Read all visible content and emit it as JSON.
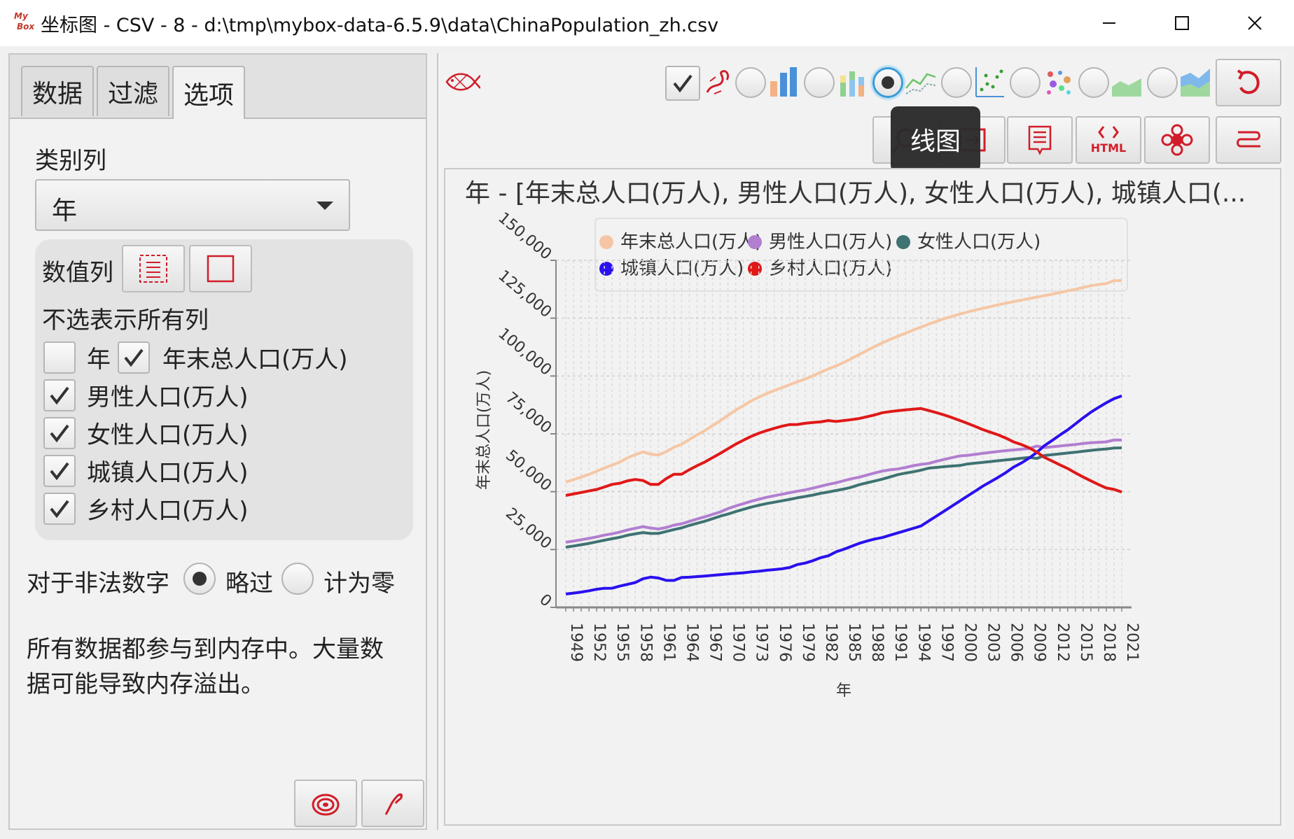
{
  "window": {
    "title": "坐标图 - CSV - 8 - d:\\tmp\\mybox-data-6.5.9\\data\\ChinaPopulation_zh.csv",
    "logo_text_top": "My",
    "logo_text_bottom": "Box"
  },
  "tabs": [
    {
      "label": "数据",
      "active": false
    },
    {
      "label": "过滤",
      "active": false
    },
    {
      "label": "选项",
      "active": true
    }
  ],
  "options": {
    "category_label": "类别列",
    "category_value": "年",
    "value_columns_label": "数值列",
    "none_selected_hint": "不选表示所有列",
    "columns": [
      {
        "label": "年",
        "checked": false
      },
      {
        "label": "年末总人口(万人)",
        "checked": true
      },
      {
        "label": "男性人口(万人)",
        "checked": true
      },
      {
        "label": "女性人口(万人)",
        "checked": true
      },
      {
        "label": "城镇人口(万人)",
        "checked": true
      },
      {
        "label": "乡村人口(万人)",
        "checked": true
      }
    ],
    "invalid_label": "对于非法数字",
    "skip_label": "略过",
    "zero_label": "计为零",
    "invalid_choice": "略过",
    "memory_note_line1": "所有数据都参与到内存中。大量数",
    "memory_note_line2": "据可能导致内存溢出。"
  },
  "toolbar": {
    "selected_chart_type": "line",
    "tooltip": "线图",
    "display_checked": true
  },
  "icons": {
    "logo": "mybox-logo",
    "fish": "fish-icon",
    "dragon": "dragon-icon",
    "bar": "bar-chart-icon",
    "stacked_bar": "stacked-bar-icon",
    "line": "line-chart-icon",
    "scatter": "scatter-icon",
    "bubble": "bubble-icon",
    "area": "area-chart-icon",
    "stacked_area": "stacked-area-icon",
    "refresh": "refresh-icon",
    "html": "HTML"
  },
  "colors": {
    "total": "#f6c6a4",
    "male": "#b17ed0",
    "female": "#3e7372",
    "urban": "#2a10ee",
    "rural": "#e01818",
    "accent": "#d11d2a"
  },
  "chart_data": {
    "type": "line",
    "title": "年 - [年末总人口(万人), 男性人口(万人), 女性人口(万人), 城镇人口(...",
    "xlabel": "年",
    "ylabel": "年末总人口(万人)",
    "ylim": [
      0,
      150000
    ],
    "yticks": [
      "0",
      "25,000",
      "50,000",
      "75,000",
      "100,000",
      "125,000",
      "150,000"
    ],
    "x_tick_labels": [
      "1949",
      "1952",
      "1955",
      "1958",
      "1961",
      "1964",
      "1967",
      "1970",
      "1973",
      "1976",
      "1979",
      "1982",
      "1985",
      "1988",
      "1991",
      "1994",
      "1997",
      "2000",
      "2003",
      "2006",
      "2009",
      "2012",
      "2015",
      "2018",
      "2021"
    ],
    "legend": "top",
    "grid": true,
    "x": [
      1949,
      1950,
      1951,
      1952,
      1953,
      1954,
      1955,
      1956,
      1957,
      1958,
      1959,
      1960,
      1961,
      1962,
      1963,
      1964,
      1965,
      1966,
      1967,
      1968,
      1969,
      1970,
      1971,
      1972,
      1973,
      1974,
      1975,
      1976,
      1977,
      1978,
      1979,
      1980,
      1981,
      1982,
      1983,
      1984,
      1985,
      1986,
      1987,
      1988,
      1989,
      1990,
      1991,
      1992,
      1993,
      1994,
      1995,
      1996,
      1997,
      1998,
      1999,
      2000,
      2001,
      2002,
      2003,
      2004,
      2005,
      2006,
      2007,
      2008,
      2009,
      2010,
      2011,
      2012,
      2013,
      2014,
      2015,
      2016,
      2017,
      2018,
      2019,
      2020,
      2021
    ],
    "series": [
      {
        "name": "年末总人口(万人)",
        "color": "#f6c6a4",
        "values": [
          54167,
          55196,
          56300,
          57482,
          58796,
          60266,
          61465,
          62828,
          64653,
          65994,
          67207,
          66207,
          65859,
          67295,
          69172,
          70499,
          72538,
          74542,
          76368,
          78534,
          80671,
          82992,
          85229,
          87177,
          89211,
          90859,
          92420,
          93717,
          94974,
          96259,
          97542,
          98705,
          100072,
          101654,
          103008,
          104357,
          105851,
          107507,
          109300,
          111026,
          112704,
          114333,
          115823,
          117171,
          118517,
          119850,
          121121,
          122389,
          123626,
          124761,
          125786,
          126743,
          127627,
          128453,
          129227,
          129988,
          130756,
          131448,
          132129,
          132802,
          133450,
          134091,
          134735,
          135404,
          136072,
          136782,
          137462,
          138271,
          139008,
          139538,
          140005,
          141212,
          141260
        ]
      },
      {
        "name": "男性人口(万人)",
        "color": "#b17ed0",
        "values": [
          28145,
          28669,
          29231,
          29833,
          30468,
          31242,
          31809,
          32536,
          33469,
          34201,
          34890,
          34283,
          33880,
          34517,
          35533,
          36142,
          37128,
          38189,
          39136,
          40206,
          41238,
          42686,
          43819,
          44813,
          45876,
          46727,
          47564,
          48257,
          48908,
          49567,
          50192,
          50785,
          51519,
          52352,
          53152,
          53848,
          54725,
          55581,
          56290,
          57201,
          58099,
          58904,
          59466,
          59811,
          60472,
          61246,
          61808,
          62200,
          63131,
          63940,
          64692,
          65437,
          65672,
          66115,
          66556,
          66976,
          67375,
          67728,
          68048,
          68357,
          68647,
          69748,
          69068,
          69395,
          69728,
          70079,
          70414,
          70815,
          71137,
          71351,
          71527,
          72357,
          72311
        ]
      },
      {
        "name": "女性人口(万人)",
        "color": "#3e7372",
        "values": [
          26022,
          26527,
          27069,
          27649,
          28328,
          29024,
          29656,
          30292,
          31184,
          31793,
          32317,
          31924,
          31979,
          32778,
          33639,
          34357,
          35410,
          36353,
          37232,
          38328,
          39433,
          40306,
          41410,
          42364,
          43335,
          44132,
          44856,
          45460,
          46066,
          46692,
          47350,
          47920,
          48553,
          49302,
          49856,
          50509,
          51126,
          51926,
          53010,
          53825,
          54605,
          55429,
          56357,
          57360,
          58045,
          58604,
          59313,
          60189,
          60495,
          60821,
          61094,
          61306,
          61955,
          62338,
          62671,
          63012,
          63381,
          63720,
          64081,
          64445,
          64803,
          64343,
          65667,
          66009,
          66344,
          66703,
          67048,
          67456,
          67871,
          68187,
          68478,
          68855,
          68949
        ]
      },
      {
        "name": "城镇人口(万人)",
        "color": "#2a10ee",
        "values": [
          5765,
          6169,
          6632,
          7163,
          7826,
          8249,
          8285,
          9185,
          9949,
          10721,
          12371,
          13073,
          12707,
          11659,
          11646,
          12950,
          13045,
          13313,
          13548,
          13838,
          14117,
          14424,
          14711,
          14935,
          15345,
          15595,
          16030,
          16341,
          16669,
          17245,
          18495,
          19140,
          20171,
          21480,
          22274,
          24017,
          25094,
          26366,
          27674,
          28661,
          29540,
          30195,
          31203,
          32175,
          33173,
          34169,
          35174,
          37304,
          39449,
          41608,
          43748,
          45906,
          48064,
          50212,
          52376,
          54283,
          56212,
          58288,
          60633,
          62403,
          64512,
          66978,
          69927,
          72175,
          74502,
          76738,
          79302,
          81924,
          84343,
          86433,
          88426,
          90220,
          91425
        ]
      },
      {
        "name": "乡村人口(万人)",
        "color": "#e01818",
        "values": [
          48402,
          49027,
          49668,
          50319,
          50970,
          52017,
          53180,
          53643,
          54704,
          55273,
          54836,
          53134,
          53152,
          55636,
          57526,
          57549,
          59493,
          61229,
          62820,
          64696,
          66554,
          68568,
          70518,
          72242,
          73866,
          75264,
          76390,
          77376,
          78305,
          79014,
          79047,
          79565,
          79901,
          80174,
          80734,
          80340,
          80757,
          81141,
          81626,
          82365,
          83164,
          84138,
          84620,
          84996,
          85344,
          85681,
          85947,
          85085,
          84177,
          83153,
          82038,
          80837,
          79563,
          78241,
          76851,
          75705,
          74544,
          73160,
          71496,
          70399,
          68938,
          67113,
          64808,
          63229,
          61570,
          60044,
          58160,
          56347,
          54665,
          53105,
          51579,
          50992,
          49835
        ]
      }
    ]
  }
}
